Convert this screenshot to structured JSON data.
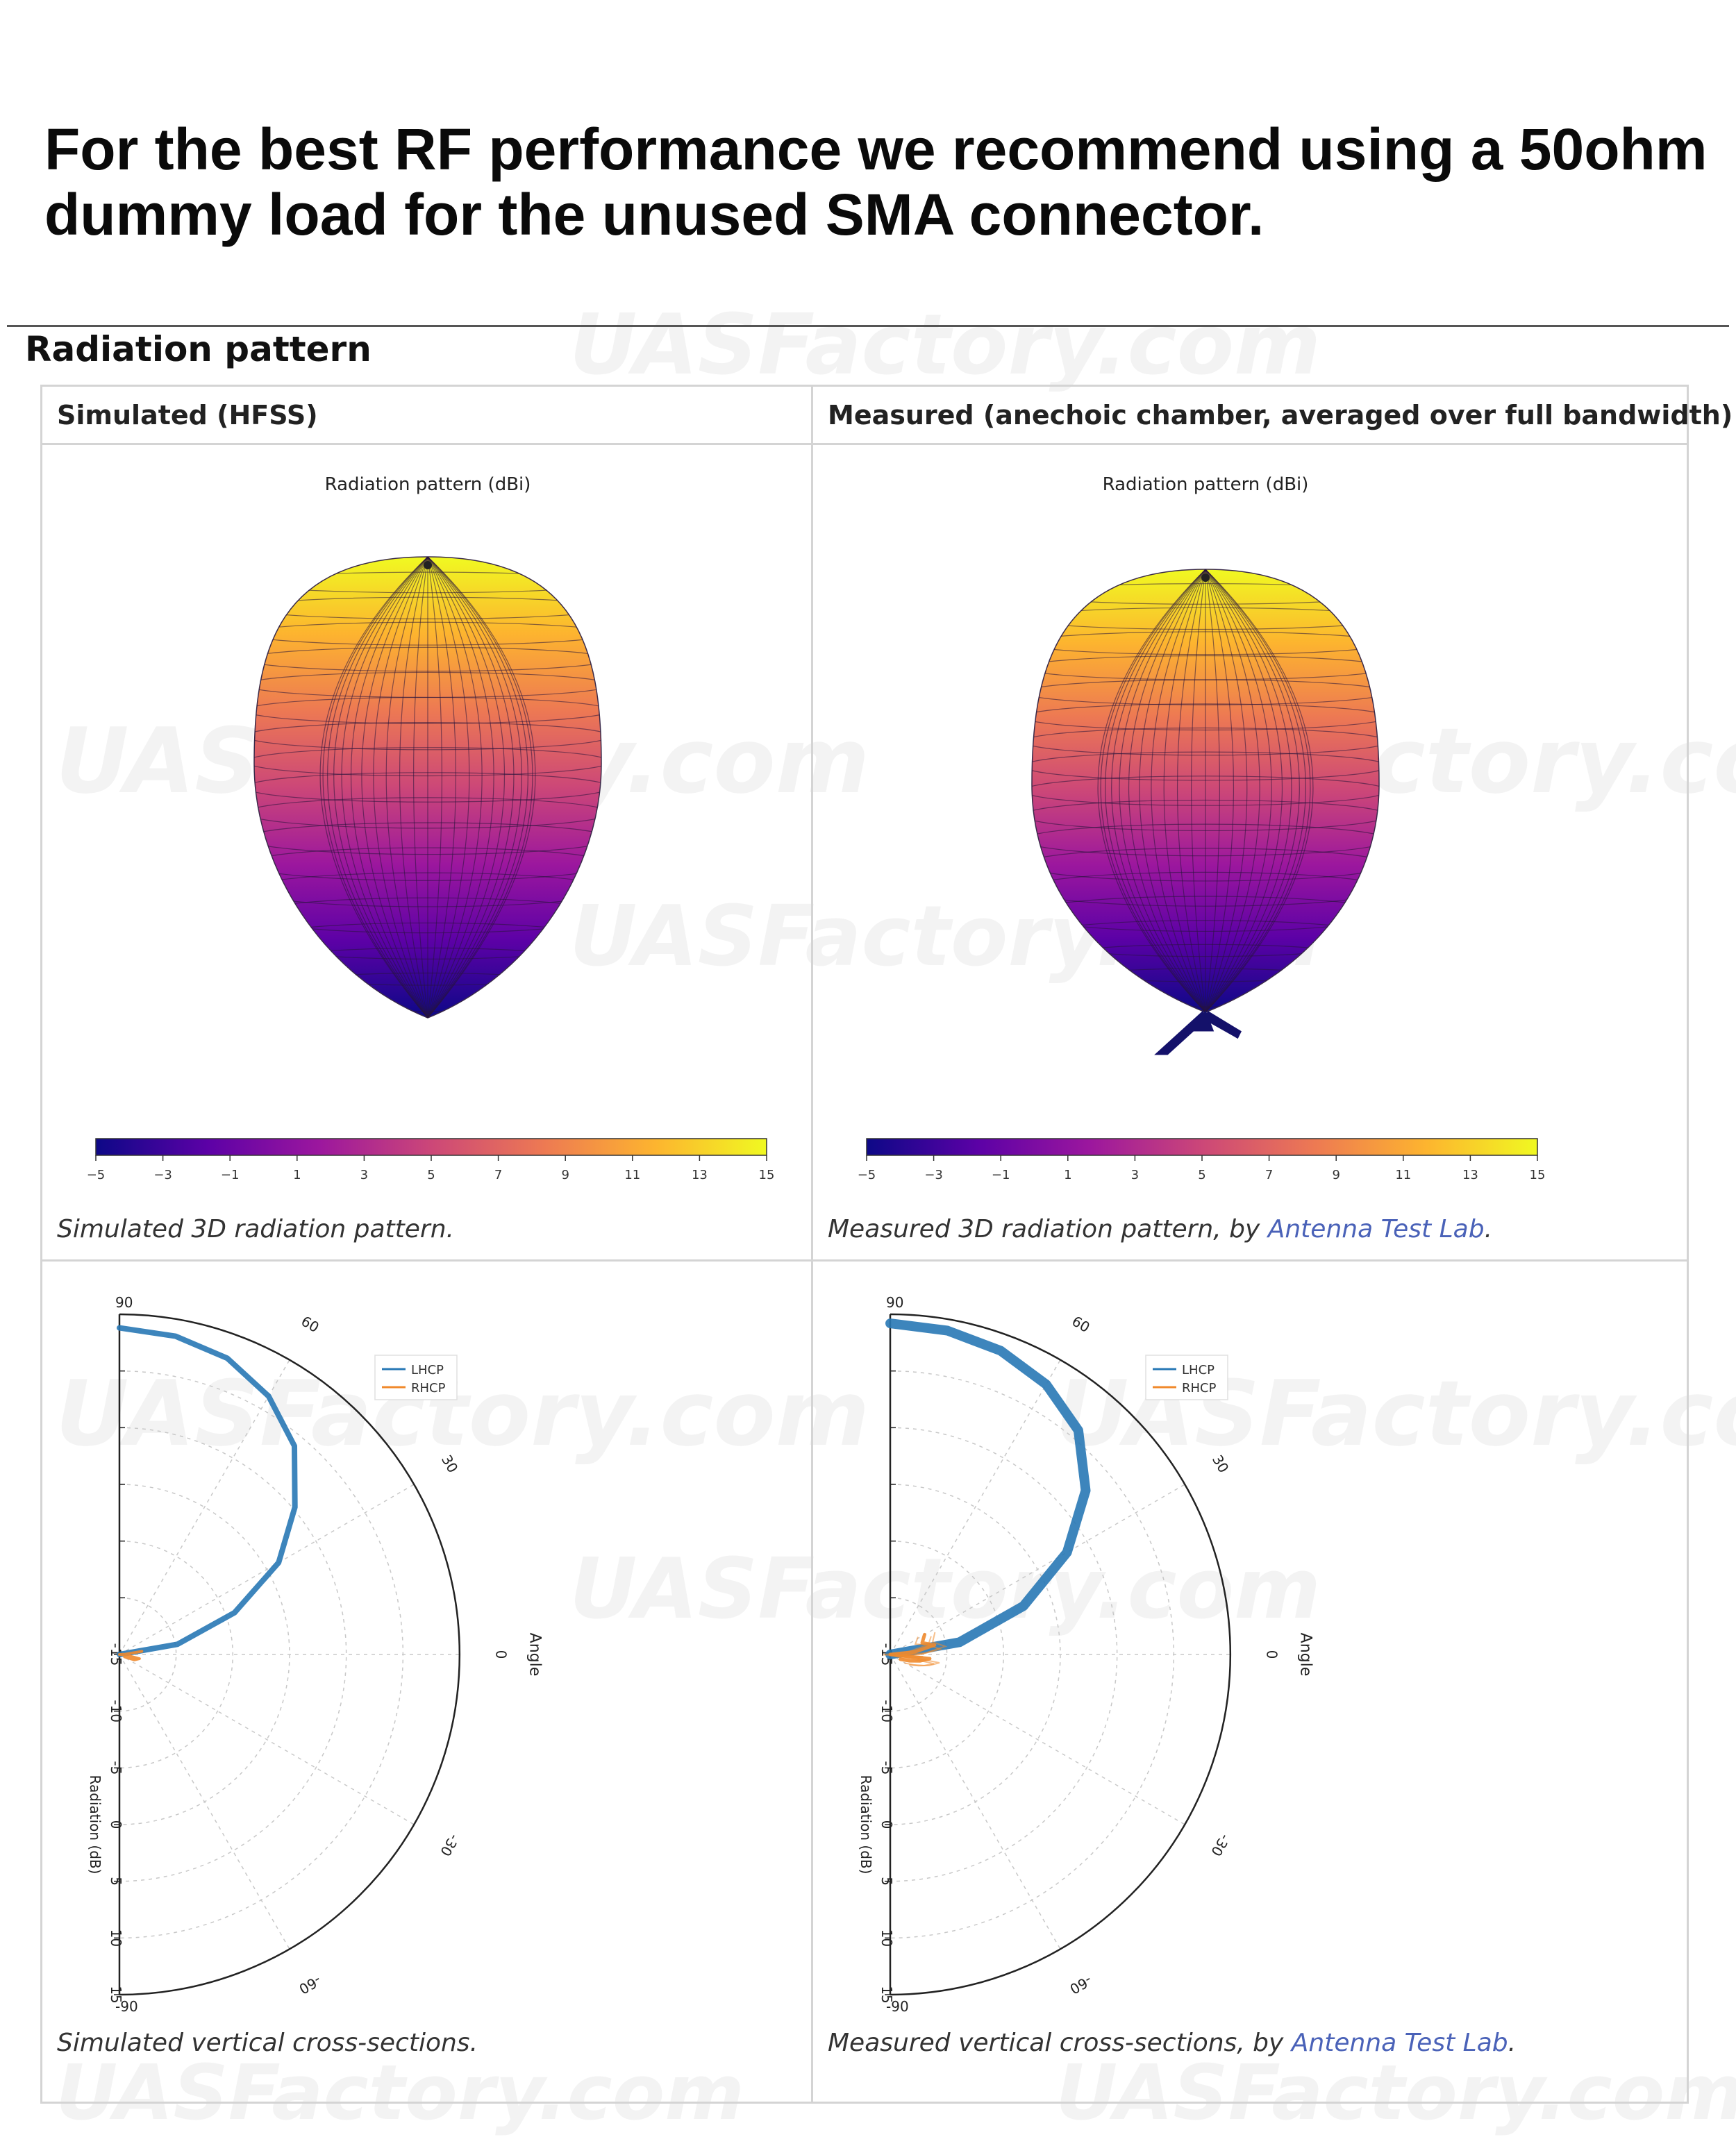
{
  "headline": "For the best RF performance we recommend using a 50ohm dummy load for the unused SMA connector.",
  "section_title": "Radiation pattern",
  "columns": {
    "left_header": "Simulated (HFSS)",
    "right_header": "Measured (anechoic chamber, averaged over full bandwidth)"
  },
  "captions": {
    "sim_3d": "Simulated 3D radiation pattern.",
    "meas_3d_prefix": "Measured 3D radiation pattern, by ",
    "meas_3d_link": "Antenna Test Lab",
    "meas_3d_suffix": ".",
    "sim_cross": "Simulated vertical cross-sections.",
    "meas_cross_prefix": "Measured vertical cross-sections, by ",
    "meas_cross_link": "Antenna Test Lab",
    "meas_cross_suffix": "."
  },
  "watermark": "UASFactory.com",
  "chart_data": [
    {
      "type": "surface",
      "panel": "simulated-3d",
      "title": "Radiation pattern (dBi)",
      "colorbar": {
        "range": [
          -5,
          15
        ],
        "ticks": [
          "-5",
          "-3",
          "-1",
          "1",
          "3",
          "5",
          "7",
          "9",
          "11",
          "13",
          "15"
        ],
        "colormap": [
          "#0d0887",
          "#5c01a6",
          "#9c179e",
          "#cc4778",
          "#ed7953",
          "#fdb42f",
          "#f0f921"
        ]
      }
    },
    {
      "type": "surface",
      "panel": "measured-3d",
      "title": "Radiation pattern (dBi)",
      "colorbar": {
        "range": [
          -5,
          15
        ],
        "ticks": [
          "-5",
          "-3",
          "-1",
          "1",
          "3",
          "5",
          "7",
          "9",
          "11",
          "13",
          "15"
        ],
        "colormap": [
          "#0d0887",
          "#5c01a6",
          "#9c179e",
          "#cc4778",
          "#ed7953",
          "#fdb42f",
          "#f0f921"
        ]
      }
    },
    {
      "type": "polar",
      "panel": "simulated-cross-section",
      "angle_label": "Angle",
      "radial_label": "Radiation (dB)",
      "angle_ticks": [
        "90",
        "60",
        "30",
        "0",
        "-30",
        "-60",
        "-90"
      ],
      "radial_ticks": [
        "-15",
        "-10",
        "-5",
        "0",
        "5",
        "10",
        "15"
      ],
      "rlim": [
        -15,
        15
      ],
      "legend": [
        "LHCP",
        "RHCP"
      ],
      "legend_position": "top-right",
      "series": [
        {
          "name": "LHCP",
          "color": "#2878b5",
          "points": [
            [
              90,
              13.8
            ],
            [
              80,
              13.5
            ],
            [
              70,
              12.8
            ],
            [
              60,
              11.3
            ],
            [
              50,
              9.0
            ],
            [
              40,
              5.2
            ],
            [
              30,
              1.2
            ],
            [
              20,
              -4.2
            ],
            [
              10,
              -9.8
            ],
            [
              0,
              -15.0
            ]
          ]
        },
        {
          "name": "RHCP",
          "color": "#f08a2c",
          "points": [
            [
              8,
              -13.0
            ],
            [
              3,
              -14.5
            ],
            [
              0,
              -15.0
            ],
            [
              -5,
              -14.4
            ],
            [
              -12,
              -13.2
            ],
            [
              -20,
              -13.6
            ],
            [
              -25,
              -14.5
            ]
          ]
        }
      ]
    },
    {
      "type": "polar",
      "panel": "measured-cross-section",
      "angle_label": "Angle",
      "radial_label": "Radiation (dB)",
      "angle_ticks": [
        "90",
        "60",
        "30",
        "0",
        "-30",
        "-60",
        "-90"
      ],
      "radial_ticks": [
        "-15",
        "-10",
        "-5",
        "0",
        "5",
        "10",
        "15"
      ],
      "rlim": [
        -15,
        15
      ],
      "legend": [
        "LHCP",
        "RHCP"
      ],
      "legend_position": "top-right",
      "series": [
        {
          "name": "LHCP",
          "color": "#2878b5",
          "points": [
            [
              90,
              14.2
            ],
            [
              80,
              14.0
            ],
            [
              70,
              13.5
            ],
            [
              60,
              12.5
            ],
            [
              50,
              10.8
            ],
            [
              40,
              7.5
            ],
            [
              30,
              3.0
            ],
            [
              20,
              -2.5
            ],
            [
              10,
              -8.8
            ],
            [
              0,
              -15.0
            ]
          ]
        },
        {
          "name": "RHCP",
          "color": "#f08a2c",
          "points": [
            [
              30,
              -11.5
            ],
            [
              20,
              -12.0
            ],
            [
              12,
              -11.0
            ],
            [
              6,
              -12.8
            ],
            [
              0,
              -15.0
            ],
            [
              -6,
              -11.5
            ],
            [
              -12,
              -12.3
            ],
            [
              -18,
              -13.2
            ],
            [
              -25,
              -14.0
            ]
          ]
        }
      ]
    }
  ]
}
